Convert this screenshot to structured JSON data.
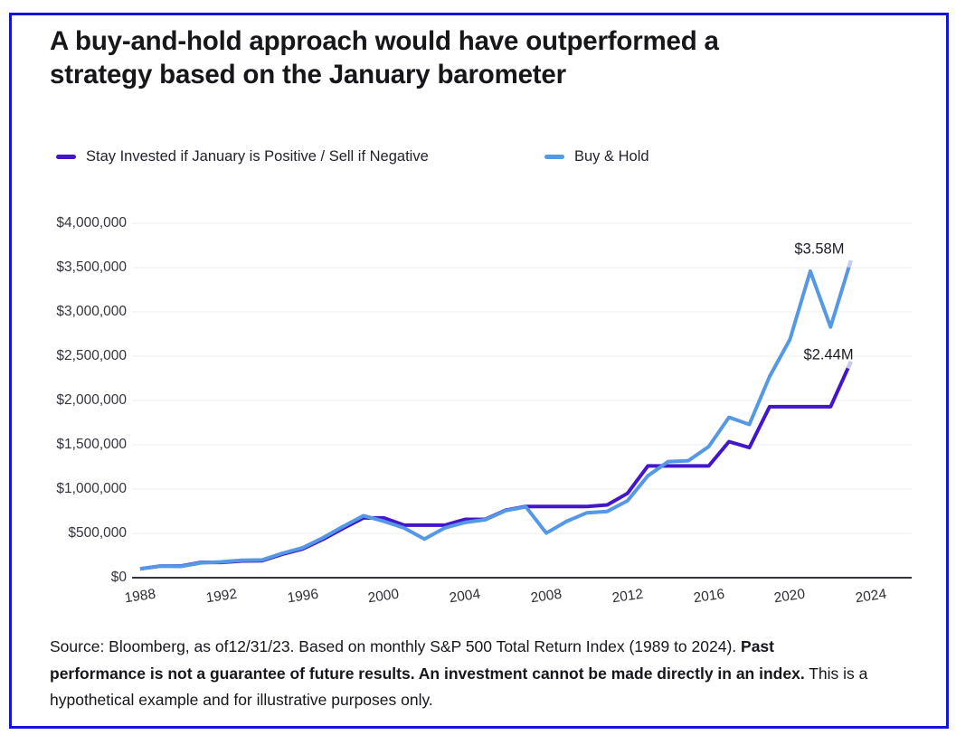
{
  "window": {
    "border_color": "#1313dc",
    "background": "#ffffff"
  },
  "title": {
    "lines": [
      "A buy-and-hold approach would have outperformed a",
      "strategy based on the January barometer"
    ]
  },
  "legend": [
    {
      "label": "Stay Invested if January is Positive / Sell if Negative",
      "color": "#4316cc"
    },
    {
      "label": "Buy & Hold",
      "color": "#5598e6"
    }
  ],
  "chart_data": {
    "type": "line",
    "title": "",
    "xlabel": "",
    "ylabel": "",
    "grid": true,
    "legend_position": "top",
    "xlim": [
      1988,
      2024
    ],
    "ylim": [
      0,
      4000000
    ],
    "x": [
      1988,
      1989,
      1990,
      1991,
      1992,
      1993,
      1994,
      1995,
      1996,
      1997,
      1998,
      1999,
      2000,
      2001,
      2002,
      2003,
      2004,
      2005,
      2006,
      2007,
      2008,
      2009,
      2010,
      2011,
      2012,
      2013,
      2014,
      2015,
      2016,
      2017,
      2018,
      2019,
      2020,
      2021,
      2022,
      2023
    ],
    "series": [
      {
        "name": "Stay Invested if January is Positive / Sell if Negative",
        "color": "#4316cc",
        "values": [
          100000,
          132000,
          132000,
          172000,
          172000,
          189000,
          192000,
          264000,
          324000,
          433000,
          557000,
          674000,
          674000,
          593000,
          593000,
          593000,
          658000,
          658000,
          762000,
          804000,
          804000,
          804000,
          804000,
          821000,
          952000,
          1261000,
          1261000,
          1261000,
          1261000,
          1536000,
          1468000,
          1930000,
          1930000,
          1930000,
          1930000,
          2438000
        ]
      },
      {
        "name": "Buy & Hold",
        "color": "#5598e6",
        "values": [
          100000,
          132000,
          128000,
          167000,
          179000,
          197000,
          200000,
          275000,
          338000,
          450000,
          579000,
          700000,
          637000,
          561000,
          437000,
          562000,
          623000,
          654000,
          757000,
          799000,
          503000,
          637000,
          733000,
          748000,
          868000,
          1150000,
          1310000,
          1320000,
          1480000,
          1810000,
          1730000,
          2270000,
          2690000,
          3460000,
          2830000,
          3580000
        ]
      }
    ],
    "x_ticks": [
      1988,
      1992,
      1996,
      2000,
      2004,
      2008,
      2012,
      2016,
      2020,
      2024
    ],
    "y_ticks": [
      {
        "value": 4000000,
        "label": "$4,000,000"
      },
      {
        "value": 3500000,
        "label": "$3,500,000"
      },
      {
        "value": 3000000,
        "label": "$3,000,000"
      },
      {
        "value": 2500000,
        "label": "$2,500,000"
      },
      {
        "value": 2000000,
        "label": "$2,000,000"
      },
      {
        "value": 1500000,
        "label": "$1,500,000"
      },
      {
        "value": 1000000,
        "label": "$1,000,000"
      },
      {
        "value": 500000,
        "label": "$500,000"
      },
      {
        "value": 0,
        "label": "$0"
      }
    ],
    "annotations": [
      {
        "text": "$3.58M",
        "series": "Buy & Hold",
        "year": 2021.45,
        "value": 3704000
      },
      {
        "text": "$2.44M",
        "series": "Stay Invested if January is Positive / Sell if Negative",
        "year": 2021.9,
        "value": 2510000
      }
    ]
  },
  "source": {
    "lines": [
      [
        {
          "t": "Source: Bloomberg, as of12/31/23. Based on monthly S&P 500 Total Return Index (1989 to 2024). ",
          "b": false
        },
        {
          "t": "Past",
          "b": true
        }
      ],
      [
        {
          "t": "performance is not a guarantee of future results. An investment cannot be made directly in an index.",
          "b": true
        },
        {
          "t": " This is a",
          "b": false
        }
      ],
      [
        {
          "t": "hypothetical example and for illustrative purposes only.",
          "b": false
        }
      ]
    ]
  }
}
